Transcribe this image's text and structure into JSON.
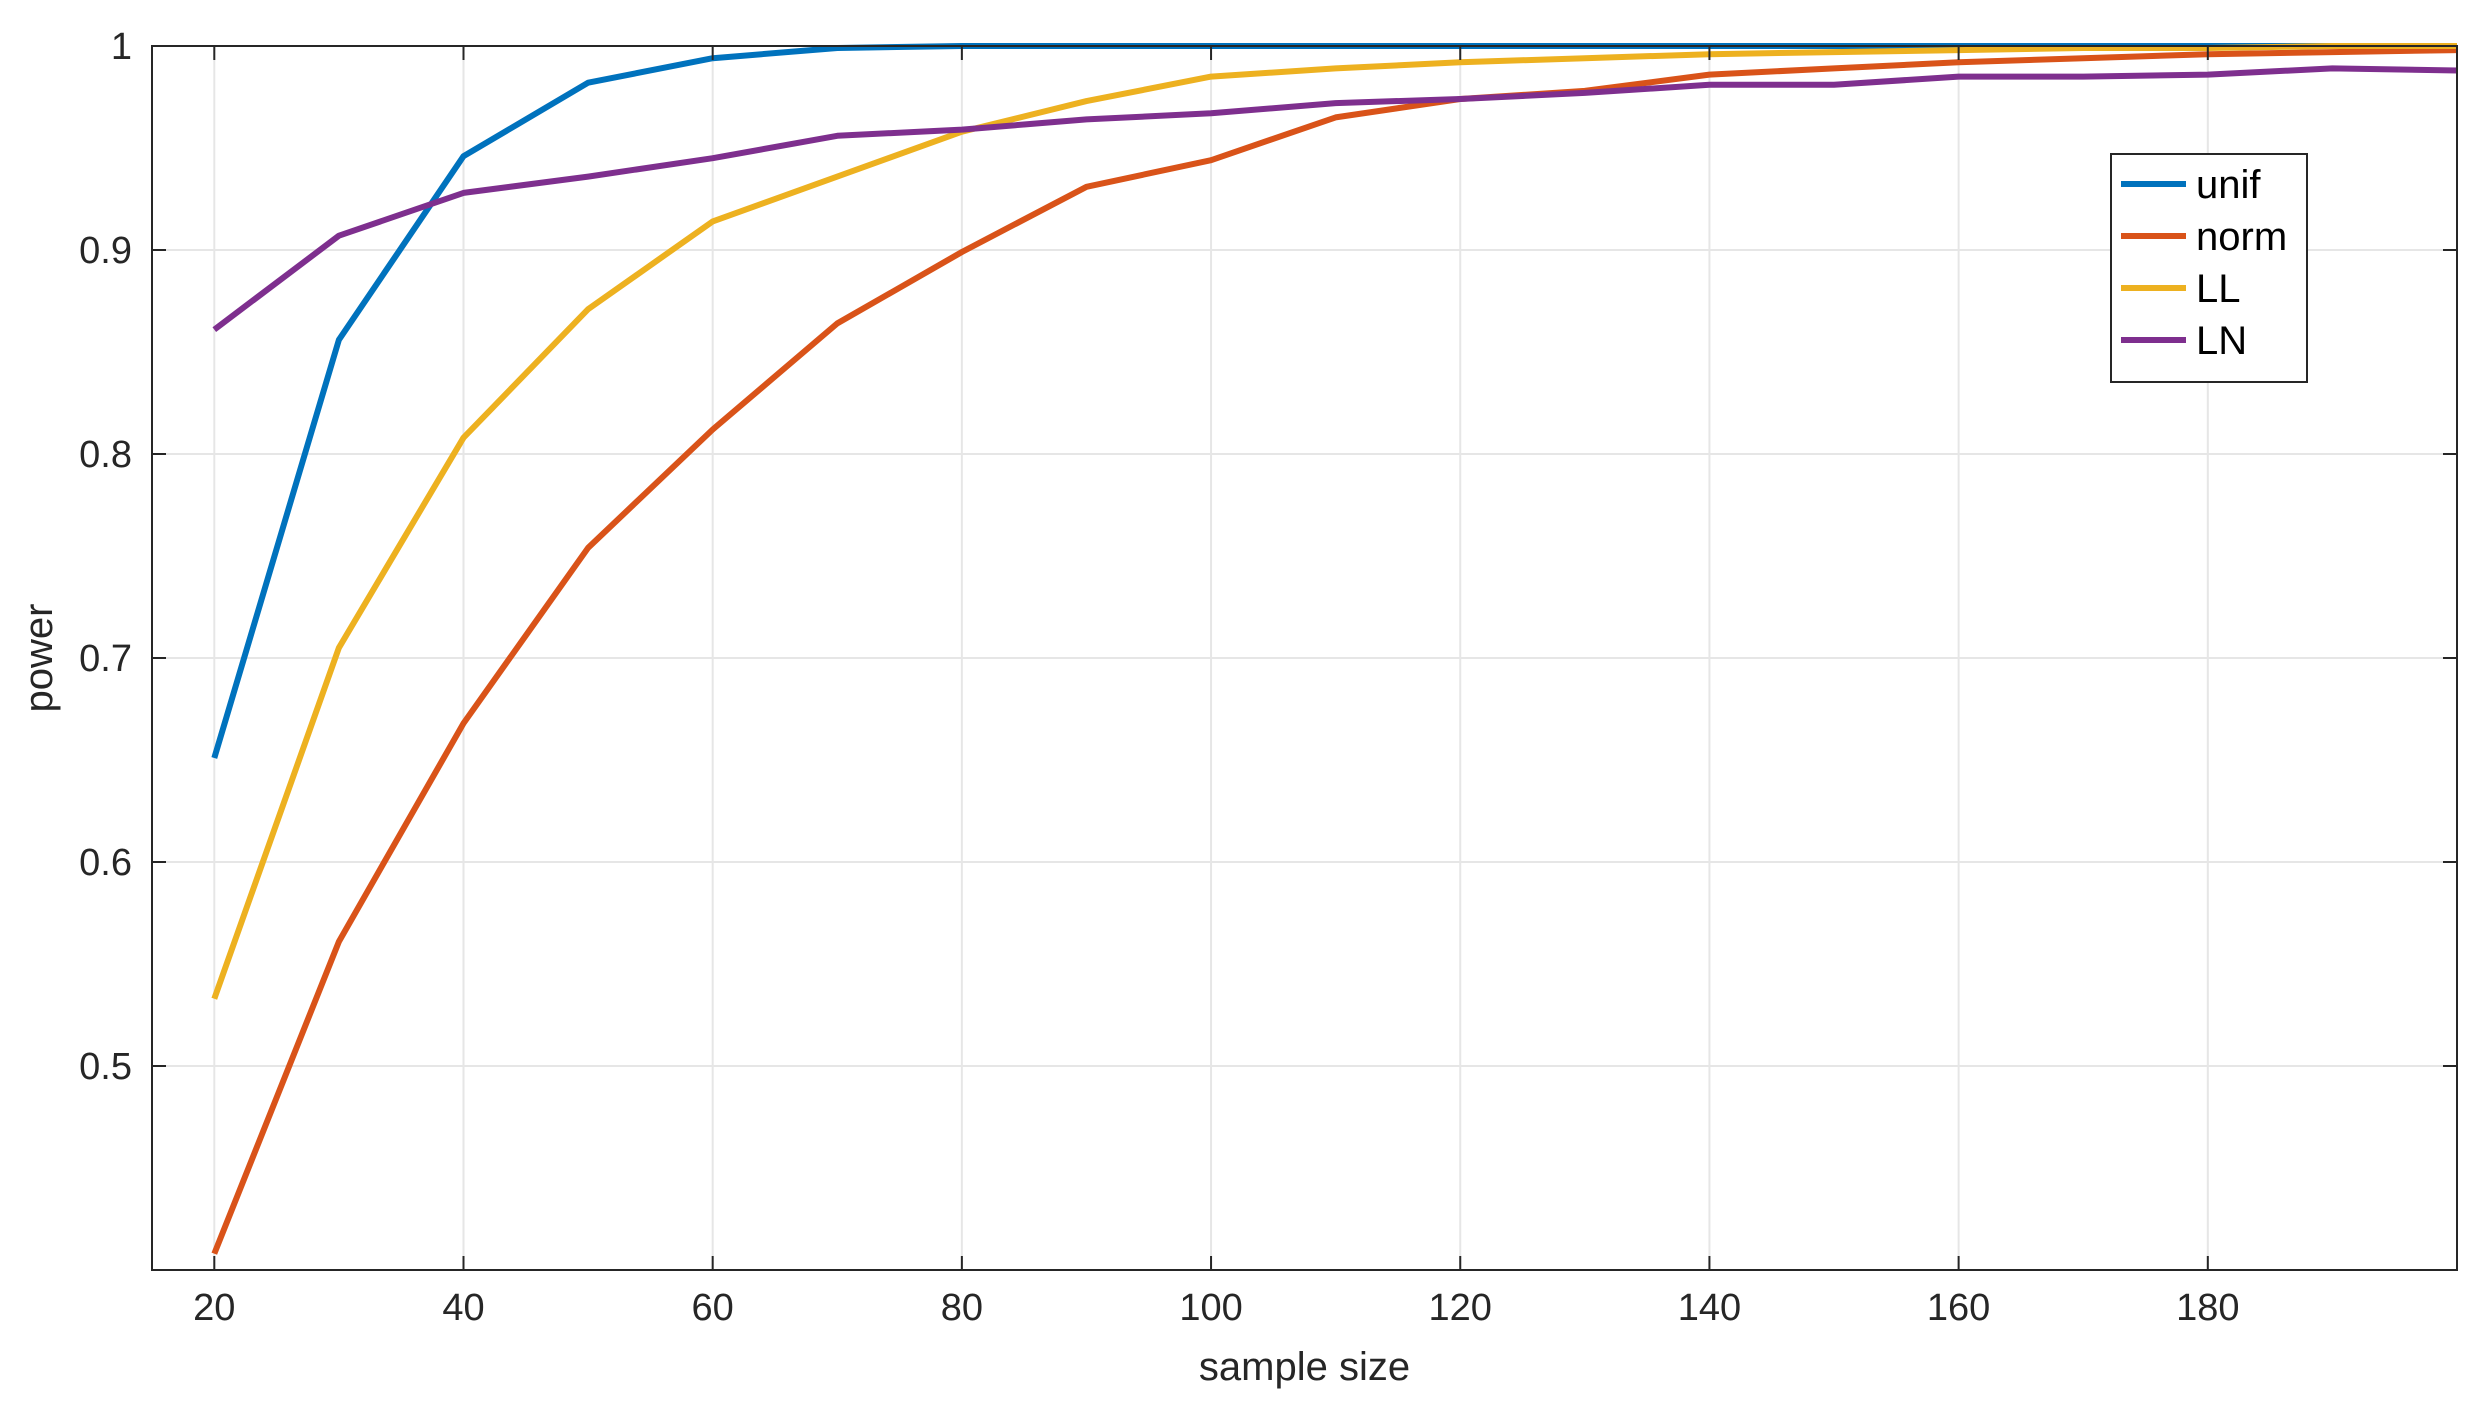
{
  "chart_data": {
    "type": "line",
    "title": "",
    "xlabel": "sample size",
    "ylabel": "power",
    "xlim": [
      15,
      200
    ],
    "ylim": [
      0.4,
      1.0
    ],
    "xticks": [
      20,
      40,
      60,
      80,
      100,
      120,
      140,
      160,
      180
    ],
    "xtick_labels": [
      "20",
      "40",
      "60",
      "80",
      "100",
      "120",
      "140",
      "160",
      "180"
    ],
    "yticks": [
      0.5,
      0.6,
      0.7,
      0.8,
      0.9,
      1.0
    ],
    "ytick_labels": [
      "0.5",
      "0.6",
      "0.7",
      "0.8",
      "0.9",
      "1"
    ],
    "grid": true,
    "legend_position": "top-right",
    "x": [
      20,
      30,
      40,
      50,
      60,
      70,
      80,
      90,
      100,
      110,
      120,
      130,
      140,
      150,
      160,
      170,
      180,
      190,
      200
    ],
    "series": [
      {
        "name": "unif",
        "color": "#0072BD",
        "values": [
          0.651,
          0.856,
          0.946,
          0.982,
          0.994,
          0.999,
          1.0,
          1.0,
          1.0,
          1.0,
          1.0,
          1.0,
          1.0,
          1.0,
          1.0,
          1.0,
          1.0,
          1.0,
          1.0
        ]
      },
      {
        "name": "norm",
        "color": "#D95319",
        "values": [
          0.408,
          0.561,
          0.668,
          0.754,
          0.812,
          0.864,
          0.899,
          0.931,
          0.944,
          0.965,
          0.974,
          0.978,
          0.986,
          0.989,
          0.992,
          0.994,
          0.996,
          0.997,
          0.998
        ]
      },
      {
        "name": "LL",
        "color": "#EDB120",
        "values": [
          0.533,
          0.705,
          0.808,
          0.871,
          0.914,
          0.936,
          0.958,
          0.973,
          0.985,
          0.989,
          0.992,
          0.994,
          0.996,
          0.997,
          0.998,
          0.999,
          0.999,
          1.0,
          1.0
        ]
      },
      {
        "name": "LN",
        "color": "#7E2F8E",
        "values": [
          0.861,
          0.907,
          0.928,
          0.936,
          0.945,
          0.956,
          0.959,
          0.964,
          0.967,
          0.972,
          0.974,
          0.977,
          0.981,
          0.981,
          0.985,
          0.985,
          0.986,
          0.989,
          0.988
        ]
      }
    ]
  }
}
